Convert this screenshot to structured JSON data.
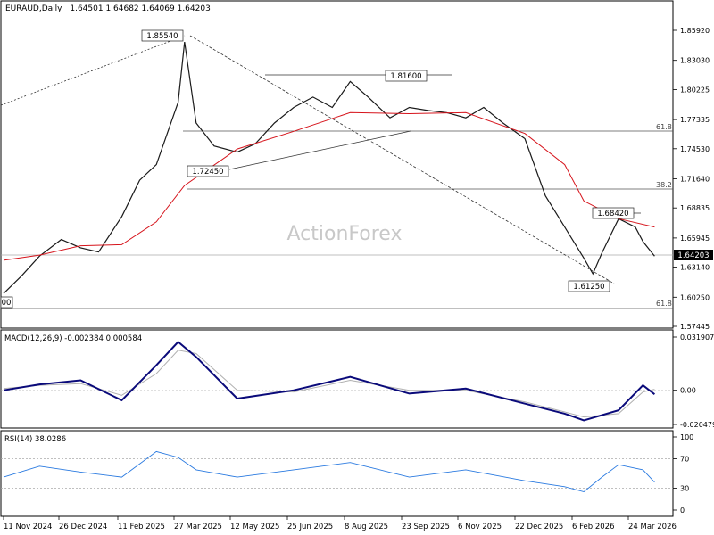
{
  "header": {
    "symbol": "EURAUD,Daily",
    "ohlc": "1.64501 1.64682 1.64069 1.64203"
  },
  "watermark": "ActionForex",
  "price_axis": {
    "ticks": [
      "1.85920",
      "1.83030",
      "1.80225",
      "1.77335",
      "1.74530",
      "1.71640",
      "1.68835",
      "1.65945",
      "1.63140",
      "1.60250",
      "1.57445"
    ],
    "current_label": "1.64203"
  },
  "date_axis": {
    "labels": [
      "11 Nov 2024",
      "26 Dec 2024",
      "11 Feb 2025",
      "27 Mar 2025",
      "12 May 2025",
      "25 Jun 2025",
      "8 Aug 2025",
      "23 Sep 2025",
      "6 Nov 2025",
      "22 Dec 2025",
      "6 Feb 2026",
      "24 Mar 2026"
    ]
  },
  "annotations": {
    "peak": "1.85540",
    "high2": "1.81600",
    "low1": "1.72450",
    "low2": "1.61250",
    "high3": "1.68420",
    "left_cut": "00",
    "fib_618_upper": "61.8",
    "fib_382": "38.2",
    "fib_618_lower": "61.8"
  },
  "macd": {
    "title": "MACD(12,26,9) -0.002384 0.000584",
    "ticks": [
      "0.031907",
      "0.00",
      "-0.020479"
    ],
    "current_label": "0.00"
  },
  "rsi": {
    "title": "RSI(14) 38.0286",
    "ticks": [
      "100",
      "70",
      "30",
      "0"
    ]
  },
  "colors": {
    "price": "#1a1a1a",
    "ma": "#d6141c",
    "macd": "#0a0a7a",
    "signal": "#b0b0b0",
    "rsi": "#2a7ae0",
    "grid": "#999999"
  },
  "chart_data": [
    {
      "type": "line",
      "title": "EURAUD,Daily",
      "series": [
        {
          "name": "",
          "x": [
            "2024-11-11",
            "2024-11-25",
            "2024-12-09",
            "2024-12-26",
            "2025-01-10",
            "2025-01-24",
            "2025-02-11",
            "2025-02-25",
            "2025-03-10",
            "2025-03-27",
            "2025-04-01",
            "2025-04-10",
            "2025-04-24",
            "2025-05-12",
            "2025-05-26",
            "2025-06-10",
            "2025-06-25",
            "2025-07-10",
            "2025-07-25",
            "2025-08-08",
            "2025-08-22",
            "2025-09-08",
            "2025-09-23",
            "2025-10-08",
            "2025-10-22",
            "2025-11-06",
            "2025-11-20",
            "2025-12-05",
            "2025-12-22",
            "2026-01-07",
            "2026-01-22",
            "2026-02-06",
            "2026-02-13",
            "2026-02-20",
            "2026-03-05",
            "2026-03-18",
            "2026-03-24",
            "2026-04-02"
          ],
          "values": [
            1.606,
            1.623,
            1.642,
            1.658,
            1.65,
            1.646,
            1.68,
            1.715,
            1.73,
            1.79,
            1.848,
            1.77,
            1.748,
            1.742,
            1.75,
            1.77,
            1.785,
            1.795,
            1.785,
            1.81,
            1.795,
            1.775,
            1.785,
            1.782,
            1.78,
            1.775,
            1.785,
            1.77,
            1.755,
            1.7,
            1.67,
            1.64,
            1.625,
            1.645,
            1.678,
            1.67,
            1.656,
            1.642
          ]
        },
        {
          "name": "",
          "x": [
            "2024-11-11",
            "2024-12-09",
            "2025-01-10",
            "2025-02-11",
            "2025-03-10",
            "2025-04-01",
            "2025-05-12",
            "2025-06-25",
            "2025-08-08",
            "2025-09-23",
            "2025-11-06",
            "2025-12-22",
            "2026-01-22",
            "2026-02-06",
            "2026-03-05",
            "2026-04-02"
          ],
          "values": [
            1.638,
            1.643,
            1.652,
            1.653,
            1.675,
            1.71,
            1.745,
            1.762,
            1.78,
            1.779,
            1.78,
            1.76,
            1.73,
            1.695,
            1.678,
            1.67
          ]
        }
      ],
      "y_range": [
        1.57445,
        1.8776
      ],
      "levels": [
        {
          "label": "61.8",
          "value": 1.7616
        },
        {
          "label": "38.2",
          "value": 1.7105
        },
        {
          "label": "61.8",
          "value": 1.599
        }
      ],
      "current": 1.64203,
      "grid": false
    },
    {
      "type": "line",
      "title": "MACD(12,26,9) -0.002384 0.000584",
      "x": [
        "2024-11-11",
        "2024-12-09",
        "2025-01-10",
        "2025-02-11",
        "2025-03-10",
        "2025-03-27",
        "2025-04-10",
        "2025-05-12",
        "2025-06-25",
        "2025-08-08",
        "2025-09-23",
        "2025-11-06",
        "2025-12-22",
        "2026-01-22",
        "2026-02-06",
        "2026-03-05",
        "2026-03-24",
        "2026-04-02"
      ],
      "series": [
        {
          "name": "",
          "values": [
            0.0,
            0.0035,
            0.006,
            -0.006,
            0.015,
            0.029,
            0.02,
            -0.005,
            0.0,
            0.008,
            -0.002,
            0.001,
            -0.008,
            -0.014,
            -0.018,
            -0.012,
            0.003,
            -0.0024
          ]
        },
        {
          "name": "",
          "values": [
            0.001,
            0.003,
            0.004,
            -0.003,
            0.01,
            0.024,
            0.022,
            0.0,
            -0.001,
            0.006,
            0.0,
            0.0,
            -0.007,
            -0.013,
            -0.016,
            -0.014,
            -0.001,
            0.0006
          ]
        }
      ],
      "y_range": [
        -0.0235,
        0.0335
      ]
    },
    {
      "type": "line",
      "title": "RSI(14) 38.0286",
      "x": [
        "2024-11-11",
        "2024-12-09",
        "2025-01-10",
        "2025-02-11",
        "2025-03-10",
        "2025-03-27",
        "2025-04-10",
        "2025-05-12",
        "2025-06-25",
        "2025-08-08",
        "2025-09-23",
        "2025-11-06",
        "2025-12-22",
        "2026-01-22",
        "2026-02-06",
        "2026-02-20",
        "2026-03-05",
        "2026-03-24",
        "2026-04-02"
      ],
      "series": [
        {
          "name": "",
          "values": [
            45,
            60,
            52,
            45,
            80,
            72,
            55,
            45,
            55,
            65,
            45,
            55,
            40,
            32,
            25,
            45,
            62,
            55,
            38
          ]
        }
      ],
      "y_range": [
        0,
        100
      ],
      "levels": [
        70,
        30
      ]
    }
  ]
}
